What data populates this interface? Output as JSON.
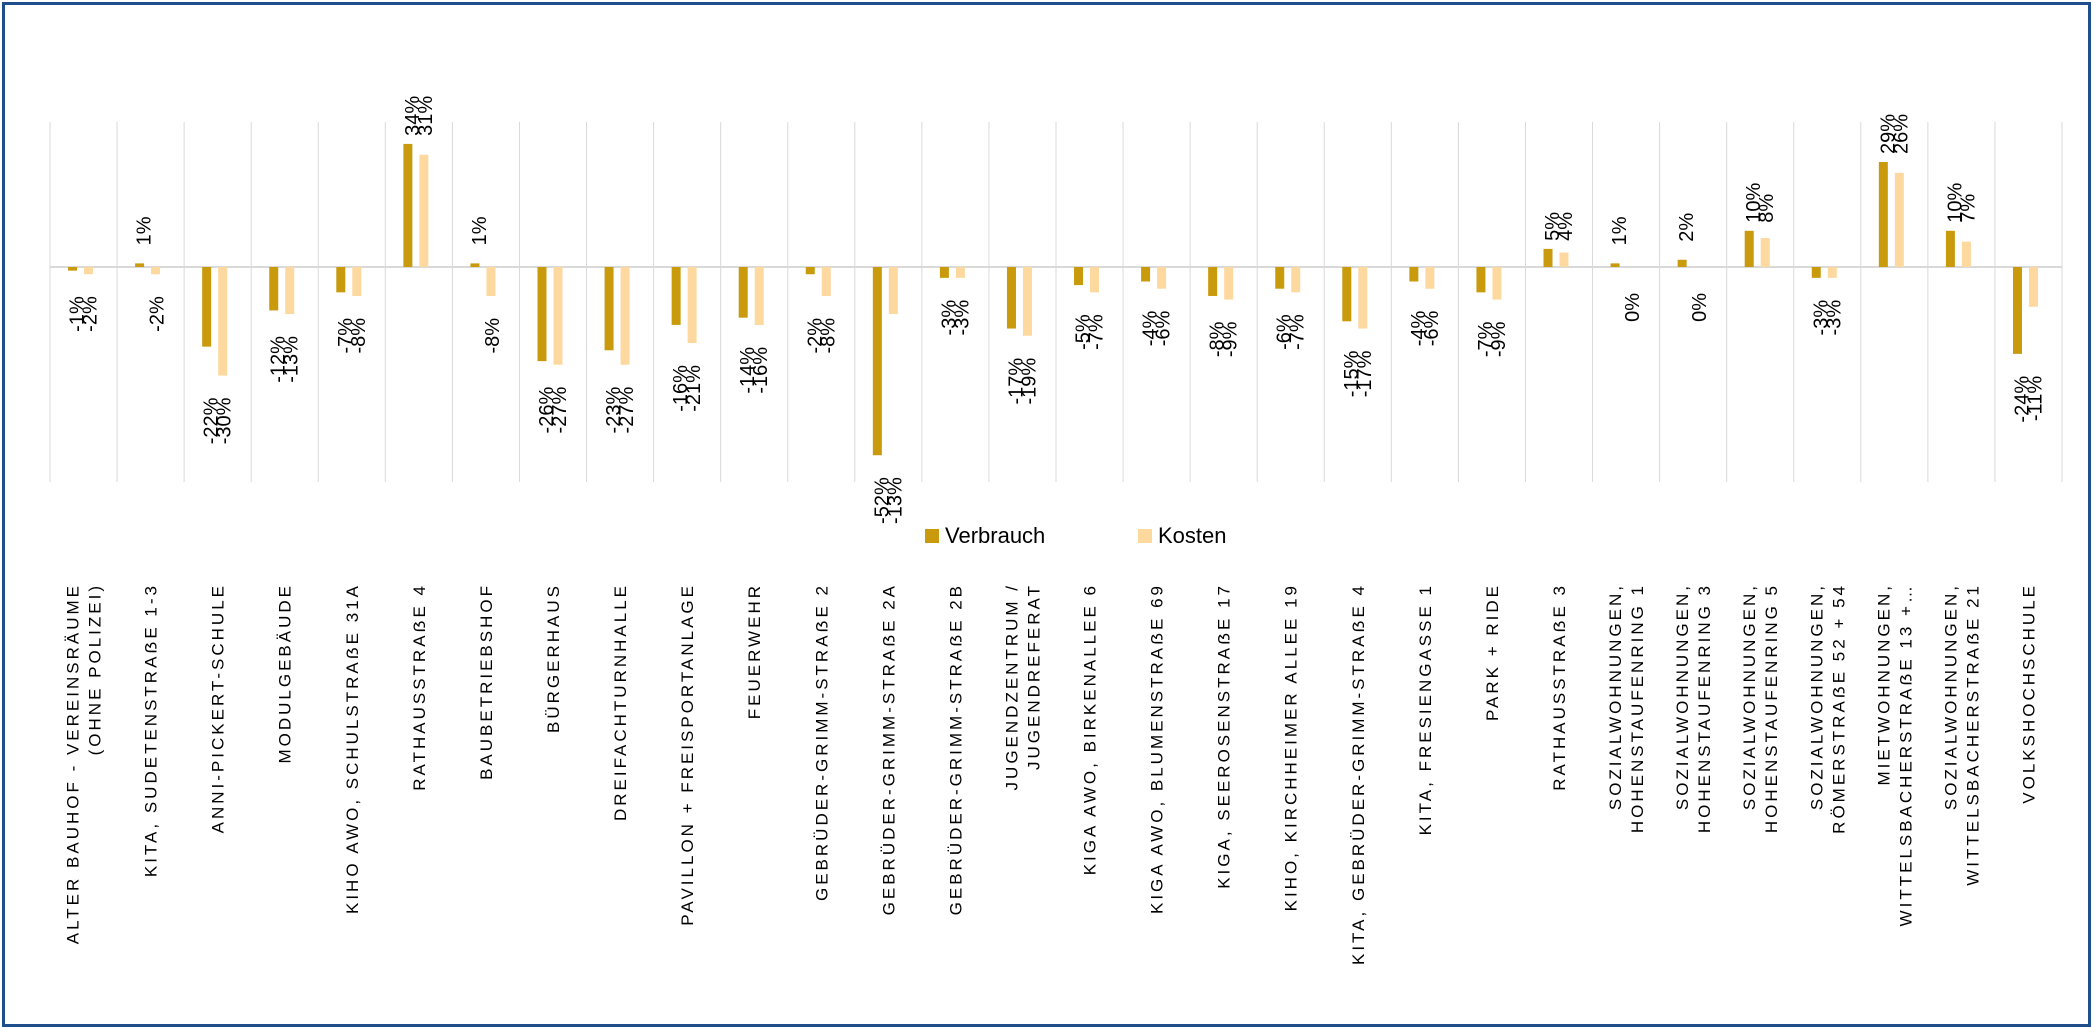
{
  "chart_data": {
    "type": "bar",
    "categories": [
      [
        "ALTER BAUHOF - VEREINSRÄUME",
        "(OHNE POLIZEI)"
      ],
      [
        "KITA, SUDETENSTRAẞE 1-3"
      ],
      [
        "ANNI-PICKERT-SCHULE"
      ],
      [
        "MODULGEBÄUDE"
      ],
      [
        "KIHO AWO, SCHULSTRAẞE 31A"
      ],
      [
        "RATHAUSSTRAẞE 4"
      ],
      [
        "BAUBETRIEBSHOF"
      ],
      [
        "BÜRGERHAUS"
      ],
      [
        "DREIFACHTURNHALLE"
      ],
      [
        "PAVILLON + FREISPORTANLAGE"
      ],
      [
        "FEUERWEHR"
      ],
      [
        "GEBRÜDER-GRIMM-STRAẞE 2"
      ],
      [
        "GEBRÜDER-GRIMM-STRAẞE 2A"
      ],
      [
        "GEBRÜDER-GRIMM-STRAẞE 2B"
      ],
      [
        "JUGENDZENTRUM /",
        "JUGENDREFERAT"
      ],
      [
        "KIGA AWO, BIRKENALLEE 6"
      ],
      [
        "KIGA AWO, BLUMENSTRAẞE 69"
      ],
      [
        "KIGA, SEEROSENSTRAẞE 17"
      ],
      [
        "KIHO, KIRCHHEIMER ALLEE 19"
      ],
      [
        "KITA, GEBRÜDER-GRIMM-STRAẞE 4"
      ],
      [
        "KITA, FRESIENGASSE 1"
      ],
      [
        "PARK + RIDE"
      ],
      [
        "RATHAUSSTRAẞE 3"
      ],
      [
        "SOZIALWOHNUNGEN,",
        "HOHENSTAUFENRING 1"
      ],
      [
        "SOZIALWOHNUNGEN,",
        "HOHENSTAUFENRING 3"
      ],
      [
        "SOZIALWOHNUNGEN,",
        "HOHENSTAUFENRING 5"
      ],
      [
        "SOZIALWOHNUNGEN,",
        "RÖMERSTRAẞE 52 + 54"
      ],
      [
        "MIETWOHNUNGEN,",
        "WITTELSBACHERSTRAẞE 13 +…"
      ],
      [
        "SOZIALWOHNUNGEN,",
        "WITTELSBACHERSTRAẞE 21"
      ],
      [
        "VOLKSHOCHSCHULE"
      ]
    ],
    "series": [
      {
        "name": "Verbrauch",
        "color": "#c89a0c",
        "values": [
          -1,
          1,
          -22,
          -12,
          -7,
          34,
          1,
          -26,
          -23,
          -16,
          -14,
          -2,
          -52,
          -3,
          -17,
          -5,
          -4,
          -8,
          -6,
          -15,
          -4,
          -7,
          5,
          1,
          2,
          10,
          -3,
          29,
          10,
          -24
        ],
        "labels": [
          "-1%",
          "1%",
          "-22%",
          "-12%",
          "-7%",
          "34%",
          "1%",
          "-26%",
          "-23%",
          "-16%",
          "-14%",
          "-2%",
          "-52%",
          "-3%",
          "-17%",
          "-5%",
          "-4%",
          "-8%",
          "-6%",
          "-15%",
          "-4%",
          "-7%",
          "5%",
          "1%",
          "2%",
          "10%",
          "-3%",
          "29%",
          "10%",
          "-24%"
        ]
      },
      {
        "name": "Kosten",
        "color": "#fdd9a0",
        "values": [
          -2,
          -2,
          -30,
          -13,
          -8,
          31,
          -8,
          -27,
          -27,
          -21,
          -16,
          -8,
          -13,
          -3,
          -19,
          -7,
          -6,
          -9,
          -7,
          -17,
          -6,
          -9,
          4,
          0,
          0,
          8,
          -3,
          26,
          7,
          -11
        ],
        "labels": [
          "-2%",
          "-2%",
          "-30%",
          "-13%",
          "-8%",
          "31%",
          "-8%",
          "-27%",
          "-27%",
          "-21%",
          "-16%",
          "-8%",
          "-13%",
          "-3%",
          "-19%",
          "-7%",
          "-6%",
          "-9%",
          "-7%",
          "-17%",
          "-6%",
          "-9%",
          "4%",
          "0%",
          "0%",
          "8%",
          "-3%",
          "26%",
          "7%",
          "-11%"
        ]
      }
    ],
    "ylim": [
      -60,
      40
    ],
    "grid": true,
    "legend_position": "bottom"
  }
}
